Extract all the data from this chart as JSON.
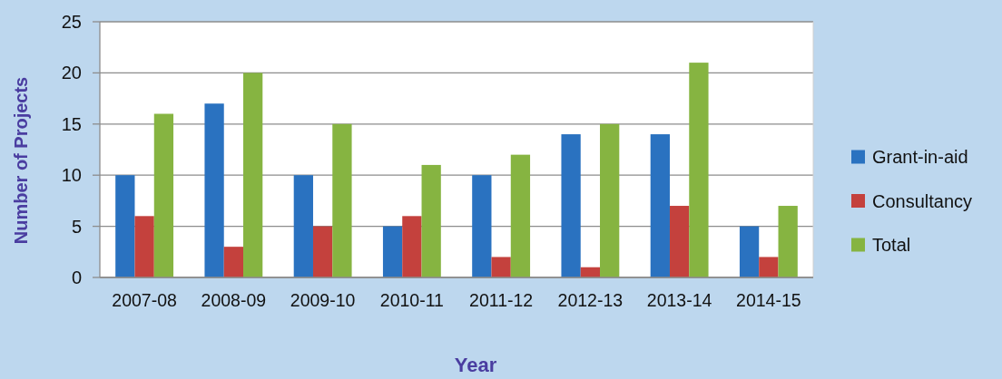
{
  "chart_data": {
    "type": "bar",
    "xlabel": "Year",
    "ylabel": "Number of Projects",
    "categories": [
      "2007-08",
      "2008-09",
      "2009-10",
      "2010-11",
      "2011-12",
      "2012-13",
      "2013-14",
      "2014-15"
    ],
    "series": [
      {
        "name": "Grant-in-aid",
        "color": "#2a72c0",
        "values": [
          10,
          17,
          10,
          5,
          10,
          14,
          14,
          5
        ]
      },
      {
        "name": "Consultancy",
        "color": "#c4413d",
        "values": [
          6,
          3,
          5,
          6,
          2,
          1,
          7,
          2
        ]
      },
      {
        "name": "Total",
        "color": "#86b441",
        "values": [
          16,
          20,
          15,
          11,
          12,
          15,
          21,
          7
        ]
      }
    ],
    "ylim": [
      0,
      25
    ],
    "yticks": [
      0,
      5,
      10,
      15,
      20,
      25
    ],
    "grid": "y",
    "legend": "right"
  }
}
